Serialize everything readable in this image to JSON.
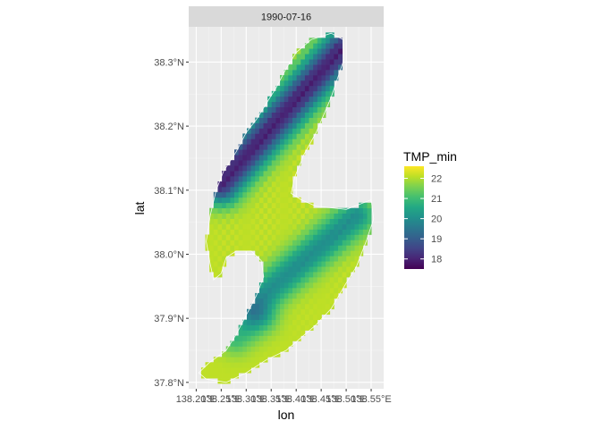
{
  "chart_data": {
    "type": "heatmap",
    "facet_label": "1990-07-16",
    "xlabel": "lon",
    "ylabel": "lat",
    "x_ticks": [
      {
        "value": 138.2,
        "label": "138.20°E"
      },
      {
        "value": 138.25,
        "label": "138.25°E"
      },
      {
        "value": 138.3,
        "label": "138.30°E"
      },
      {
        "value": 138.35,
        "label": "138.35°E"
      },
      {
        "value": 138.4,
        "label": "138.40°E"
      },
      {
        "value": 138.45,
        "label": "138.45°E"
      },
      {
        "value": 138.5,
        "label": "138.50°E"
      },
      {
        "value": 138.55,
        "label": "138.55°E"
      }
    ],
    "y_ticks": [
      {
        "value": 37.8,
        "label": "37.8°N"
      },
      {
        "value": 37.9,
        "label": "37.9°N"
      },
      {
        "value": 38.0,
        "label": "38.0°N"
      },
      {
        "value": 38.1,
        "label": "38.1°N"
      },
      {
        "value": 38.2,
        "label": "38.2°N"
      },
      {
        "value": 38.3,
        "label": "38.3°N"
      }
    ],
    "xlim": [
      138.185,
      138.575
    ],
    "ylim": [
      37.79,
      38.355
    ],
    "grid": true,
    "legend": {
      "title": "TMP_min",
      "placement": "right",
      "min": 17.5,
      "max": 22.6,
      "ticks": [
        {
          "value": 22,
          "label": "22"
        },
        {
          "value": 21,
          "label": "21"
        },
        {
          "value": 20,
          "label": "20"
        },
        {
          "value": 19,
          "label": "19"
        },
        {
          "value": 18,
          "label": "18"
        }
      ],
      "colormap": "viridis"
    },
    "cell_size": {
      "dlon": 0.0083,
      "dlat": 0.0083
    },
    "surface": {
      "base": 22.1,
      "ridges": [
        {
          "from": [
            138.25,
            38.11
          ],
          "to": [
            138.49,
            38.32
          ],
          "width": 0.022,
          "depth": 4.1
        },
        {
          "from": [
            138.31,
            37.92
          ],
          "to": [
            138.52,
            38.06
          ],
          "width": 0.02,
          "depth": 2.1
        },
        {
          "from": [
            138.28,
            37.87
          ],
          "to": [
            138.33,
            37.9
          ],
          "width": 0.018,
          "depth": 1.2
        }
      ]
    },
    "island_outline": [
      [
        138.47,
        38.345
      ],
      [
        138.494,
        38.335
      ],
      [
        138.496,
        38.305
      ],
      [
        138.47,
        38.245
      ],
      [
        138.44,
        38.19
      ],
      [
        138.415,
        38.155
      ],
      [
        138.397,
        38.12
      ],
      [
        138.39,
        38.095
      ],
      [
        138.41,
        38.085
      ],
      [
        138.44,
        38.075
      ],
      [
        138.5,
        38.07
      ],
      [
        138.55,
        38.085
      ],
      [
        138.555,
        38.055
      ],
      [
        138.54,
        38.02
      ],
      [
        138.52,
        37.98
      ],
      [
        138.5,
        37.955
      ],
      [
        138.47,
        37.915
      ],
      [
        138.44,
        37.89
      ],
      [
        138.41,
        37.87
      ],
      [
        138.38,
        37.85
      ],
      [
        138.34,
        37.835
      ],
      [
        138.3,
        37.815
      ],
      [
        138.26,
        37.8
      ],
      [
        138.22,
        37.805
      ],
      [
        138.205,
        37.815
      ],
      [
        138.225,
        37.83
      ],
      [
        138.26,
        37.85
      ],
      [
        138.28,
        37.875
      ],
      [
        138.3,
        37.905
      ],
      [
        138.32,
        37.935
      ],
      [
        138.335,
        37.965
      ],
      [
        138.33,
        37.99
      ],
      [
        138.31,
        38.005
      ],
      [
        138.28,
        38.005
      ],
      [
        138.26,
        37.995
      ],
      [
        138.25,
        37.97
      ],
      [
        138.235,
        37.96
      ],
      [
        138.228,
        37.985
      ],
      [
        138.22,
        38.02
      ],
      [
        138.228,
        38.06
      ],
      [
        138.24,
        38.1
      ],
      [
        138.255,
        38.13
      ],
      [
        138.28,
        38.16
      ],
      [
        138.3,
        38.19
      ],
      [
        138.32,
        38.21
      ],
      [
        138.34,
        38.235
      ],
      [
        138.36,
        38.26
      ],
      [
        138.38,
        38.29
      ],
      [
        138.4,
        38.315
      ],
      [
        138.43,
        38.335
      ]
    ]
  }
}
